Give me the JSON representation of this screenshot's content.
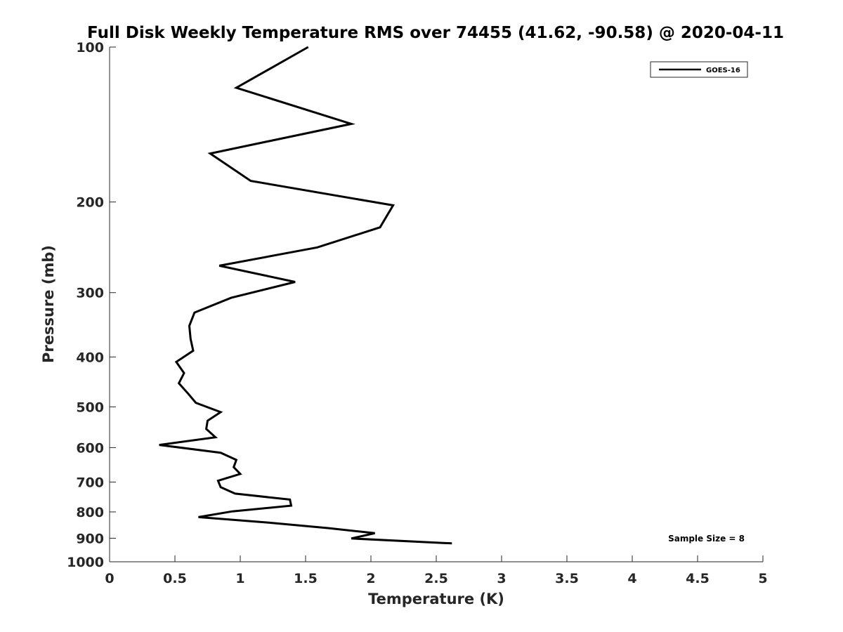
{
  "chart_data": {
    "type": "line",
    "title": "Full Disk Weekly Temperature RMS over 74455 (41.62, -90.58) @ 2020-04-11",
    "xlabel": "Temperature (K)",
    "ylabel": "Pressure (mb)",
    "xlim": [
      0,
      5
    ],
    "ylim": [
      100,
      1000
    ],
    "y_scale": "log",
    "y_reversed": true,
    "grid": false,
    "legend_position": "top-right",
    "x_ticks": [
      "0",
      "0.5",
      "1",
      "1.5",
      "2",
      "2.5",
      "3",
      "3.5",
      "4",
      "4.5",
      "5"
    ],
    "x_tick_values": [
      0,
      0.5,
      1,
      1.5,
      2,
      2.5,
      3,
      3.5,
      4,
      4.5,
      5
    ],
    "y_ticks": [
      "100",
      "200",
      "300",
      "400",
      "500",
      "600",
      "700",
      "800",
      "900",
      "1000"
    ],
    "y_tick_values": [
      100,
      200,
      300,
      400,
      500,
      600,
      700,
      800,
      900,
      1000
    ],
    "annotation": "Sample Size = 8",
    "series": [
      {
        "name": "GOES-16",
        "color": "#000000",
        "points": [
          [
            1.52,
            100
          ],
          [
            0.97,
            120
          ],
          [
            1.85,
            141
          ],
          [
            0.77,
            161
          ],
          [
            1.08,
            182
          ],
          [
            2.17,
            203
          ],
          [
            2.07,
            224
          ],
          [
            1.59,
            245
          ],
          [
            0.84,
            266
          ],
          [
            1.42,
            286
          ],
          [
            0.93,
            307
          ],
          [
            0.65,
            328
          ],
          [
            0.61,
            348
          ],
          [
            0.62,
            369
          ],
          [
            0.64,
            389
          ],
          [
            0.51,
            409
          ],
          [
            0.57,
            430
          ],
          [
            0.53,
            450
          ],
          [
            0.6,
            471
          ],
          [
            0.66,
            491
          ],
          [
            0.85,
            512
          ],
          [
            0.75,
            532
          ],
          [
            0.74,
            552
          ],
          [
            0.81,
            573
          ],
          [
            0.38,
            593
          ],
          [
            0.85,
            614
          ],
          [
            0.97,
            634
          ],
          [
            0.95,
            655
          ],
          [
            1.0,
            675
          ],
          [
            0.83,
            696
          ],
          [
            0.85,
            716
          ],
          [
            0.96,
            737
          ],
          [
            1.38,
            757
          ],
          [
            1.39,
            778
          ],
          [
            0.94,
            798
          ],
          [
            0.68,
            819
          ],
          [
            1.21,
            839
          ],
          [
            1.67,
            860
          ],
          [
            2.03,
            880
          ],
          [
            1.85,
            901
          ],
          [
            2.62,
            921
          ]
        ]
      }
    ]
  }
}
